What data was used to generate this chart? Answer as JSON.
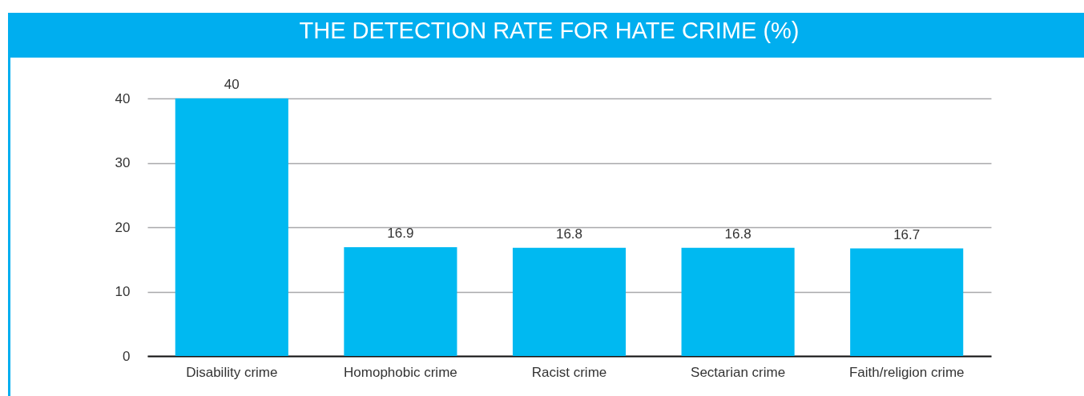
{
  "chart_data": {
    "type": "bar",
    "title": "THE DETECTION RATE FOR HATE CRIME (%)",
    "categories": [
      "Disability crime",
      "Homophobic crime",
      "Racist crime",
      "Sectarian crime",
      "Faith/religion crime"
    ],
    "values": [
      40,
      16.9,
      16.8,
      16.8,
      16.7
    ],
    "color": "#00b9f1",
    "ylim": [
      0,
      40
    ],
    "yticks": [
      0,
      10,
      20,
      30,
      40
    ],
    "grid": "y",
    "data_labels": true
  }
}
